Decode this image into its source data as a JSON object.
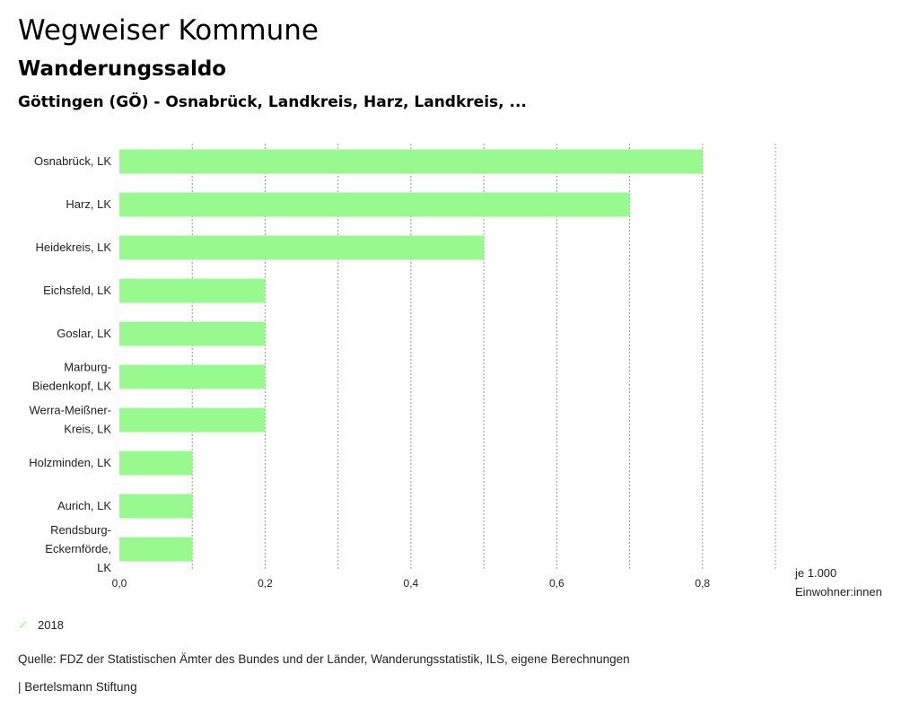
{
  "header": {
    "title": "Wegweiser Kommune",
    "subtitle": "Wanderungssaldo",
    "region": "Göttingen (GÖ) - Osnabrück, Landkreis, Harz, Landkreis, ..."
  },
  "chart_data": {
    "type": "bar",
    "orientation": "horizontal",
    "categories": [
      [
        "Osnabrück, LK"
      ],
      [
        "Harz, LK"
      ],
      [
        "Heidekreis, LK"
      ],
      [
        "Eichsfeld, LK"
      ],
      [
        "Goslar, LK"
      ],
      [
        "Marburg-",
        "Biedenkopf, LK"
      ],
      [
        "Werra-Meißner-",
        "Kreis, LK"
      ],
      [
        "Holzminden, LK"
      ],
      [
        "Aurich, LK"
      ],
      [
        "Rendsburg-",
        "Eckernförde,",
        "LK"
      ]
    ],
    "series": [
      {
        "name": "2018",
        "values": [
          0.8,
          0.7,
          0.5,
          0.2,
          0.2,
          0.2,
          0.2,
          0.1,
          0.1,
          0.1
        ]
      }
    ],
    "xlim": [
      0,
      0.9
    ],
    "grid_step": 0.1,
    "ticks": [
      0,
      0.2,
      0.4,
      0.6,
      0.8
    ],
    "tick_labels": [
      "0,0",
      "0,2",
      "0,4",
      "0,6",
      "0,8"
    ],
    "unit_label": [
      "je 1.000",
      "Einwohner:innen"
    ],
    "bar_color": "#98f98e",
    "grid": true,
    "legend_position": "bottom-left"
  },
  "legend": {
    "icon": "check-icon",
    "label": "2018"
  },
  "source": "Quelle: FDZ der Statistischen Ämter des Bundes und der Länder, Wanderungsstatistik, ILS, eigene Berechnungen",
  "footer": "| Bertelsmann Stiftung"
}
